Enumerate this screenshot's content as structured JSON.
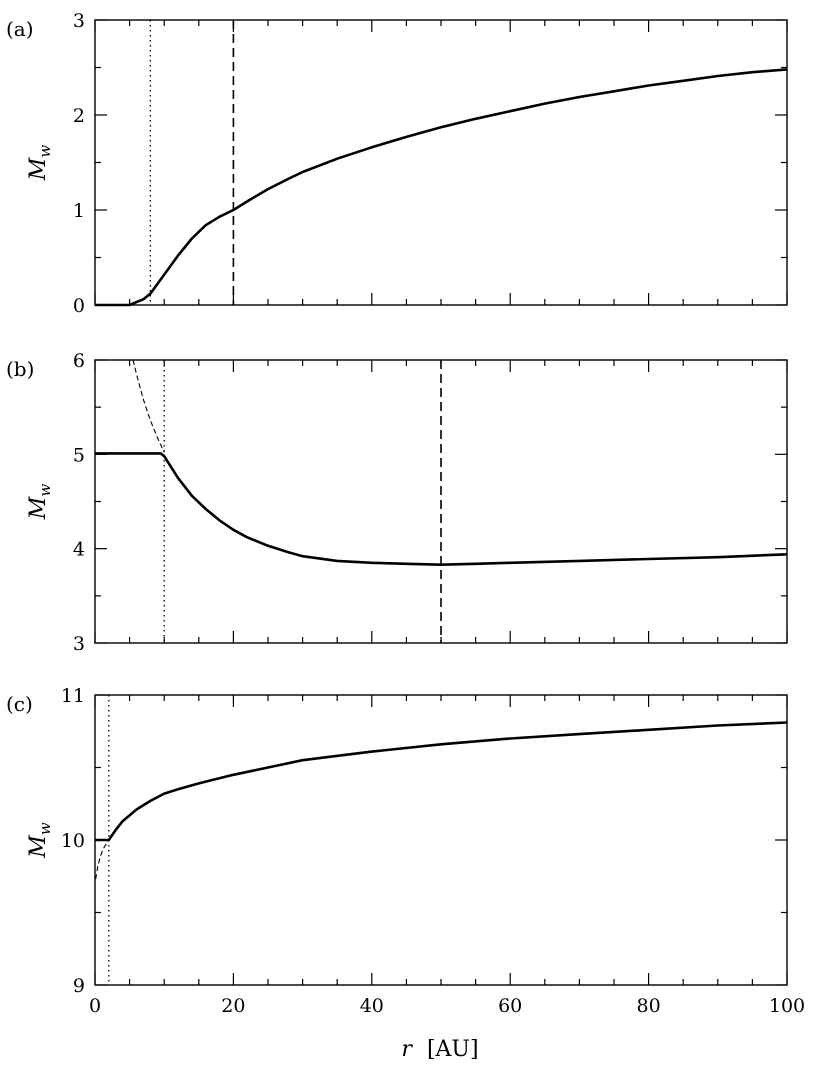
{
  "chart_data": [
    {
      "type": "line",
      "panel_label": "(a)",
      "ylabel": "M_w",
      "xlim": [
        0,
        100
      ],
      "ylim": [
        0,
        3
      ],
      "yticks": [
        0,
        1,
        2,
        3
      ],
      "ytick_labels": [
        "0",
        "1",
        "2",
        "3"
      ],
      "series": [
        {
          "style": "solid",
          "x": [
            0,
            2,
            4,
            5,
            6,
            7,
            8,
            9,
            10,
            12,
            14,
            16,
            18,
            20,
            22,
            25,
            28,
            30,
            35,
            40,
            45,
            50,
            55,
            60,
            65,
            70,
            75,
            80,
            85,
            90,
            95,
            100
          ],
          "y": [
            0,
            0,
            0,
            0,
            0.03,
            0.06,
            0.12,
            0.22,
            0.32,
            0.52,
            0.7,
            0.84,
            0.93,
            1.0,
            1.09,
            1.22,
            1.33,
            1.4,
            1.54,
            1.66,
            1.77,
            1.87,
            1.96,
            2.04,
            2.12,
            2.19,
            2.25,
            2.31,
            2.36,
            2.41,
            2.45,
            2.48
          ]
        }
      ],
      "vlines": [
        {
          "x": 8,
          "style": "dotted"
        },
        {
          "x": 20,
          "style": "dashed"
        }
      ]
    },
    {
      "type": "line",
      "panel_label": "(b)",
      "ylabel": "M_w",
      "xlim": [
        0,
        100
      ],
      "ylim": [
        3,
        6
      ],
      "yticks": [
        3,
        4,
        5,
        6
      ],
      "ytick_labels": [
        "3",
        "4",
        "5",
        "6"
      ],
      "series": [
        {
          "style": "solid",
          "x": [
            0,
            2,
            4,
            6,
            8,
            9.5,
            10,
            12,
            14,
            16,
            18,
            20,
            22,
            25,
            28,
            30,
            35,
            40,
            45,
            50,
            55,
            60,
            70,
            80,
            90,
            100
          ],
          "y": [
            5.01,
            5.01,
            5.01,
            5.01,
            5.01,
            5.01,
            4.98,
            4.75,
            4.56,
            4.42,
            4.3,
            4.2,
            4.12,
            4.03,
            3.96,
            3.92,
            3.87,
            3.85,
            3.84,
            3.83,
            3.84,
            3.85,
            3.87,
            3.89,
            3.91,
            3.94
          ]
        },
        {
          "style": "thin-dashed",
          "x": [
            5.5,
            6,
            7,
            8,
            9,
            10
          ],
          "y": [
            6.0,
            5.85,
            5.58,
            5.36,
            5.18,
            5.02
          ]
        }
      ],
      "vlines": [
        {
          "x": 10,
          "style": "dotted"
        },
        {
          "x": 50,
          "style": "dashed"
        }
      ]
    },
    {
      "type": "line",
      "panel_label": "(c)",
      "ylabel": "M_w",
      "xlim": [
        0,
        100
      ],
      "ylim": [
        9,
        11
      ],
      "yticks": [
        9,
        10,
        11
      ],
      "ytick_labels": [
        "9",
        "10",
        "11"
      ],
      "series": [
        {
          "style": "solid",
          "x": [
            0,
            1,
            2,
            3,
            4,
            5,
            6,
            8,
            10,
            12,
            15,
            20,
            25,
            30,
            40,
            50,
            60,
            70,
            80,
            90,
            100
          ],
          "y": [
            10.0,
            10.0,
            10.0,
            10.07,
            10.13,
            10.17,
            10.21,
            10.27,
            10.32,
            10.35,
            10.39,
            10.45,
            10.5,
            10.55,
            10.61,
            10.66,
            10.7,
            10.73,
            10.76,
            10.79,
            10.81
          ]
        },
        {
          "style": "thin-dashed",
          "x": [
            0.1,
            0.4,
            0.8,
            1.2,
            1.6,
            2
          ],
          "y": [
            9.73,
            9.82,
            9.89,
            9.94,
            9.97,
            10.0
          ]
        }
      ],
      "vlines": [
        {
          "x": 2,
          "style": "dotted"
        }
      ]
    }
  ],
  "x_axis": {
    "label_var": "r",
    "label_unit": "[AU]",
    "ticks": [
      0,
      20,
      40,
      60,
      80,
      100
    ],
    "tick_labels": [
      "0",
      "20",
      "40",
      "60",
      "80",
      "100"
    ]
  },
  "colors": {
    "ink": "#000000",
    "background": "#ffffff"
  }
}
